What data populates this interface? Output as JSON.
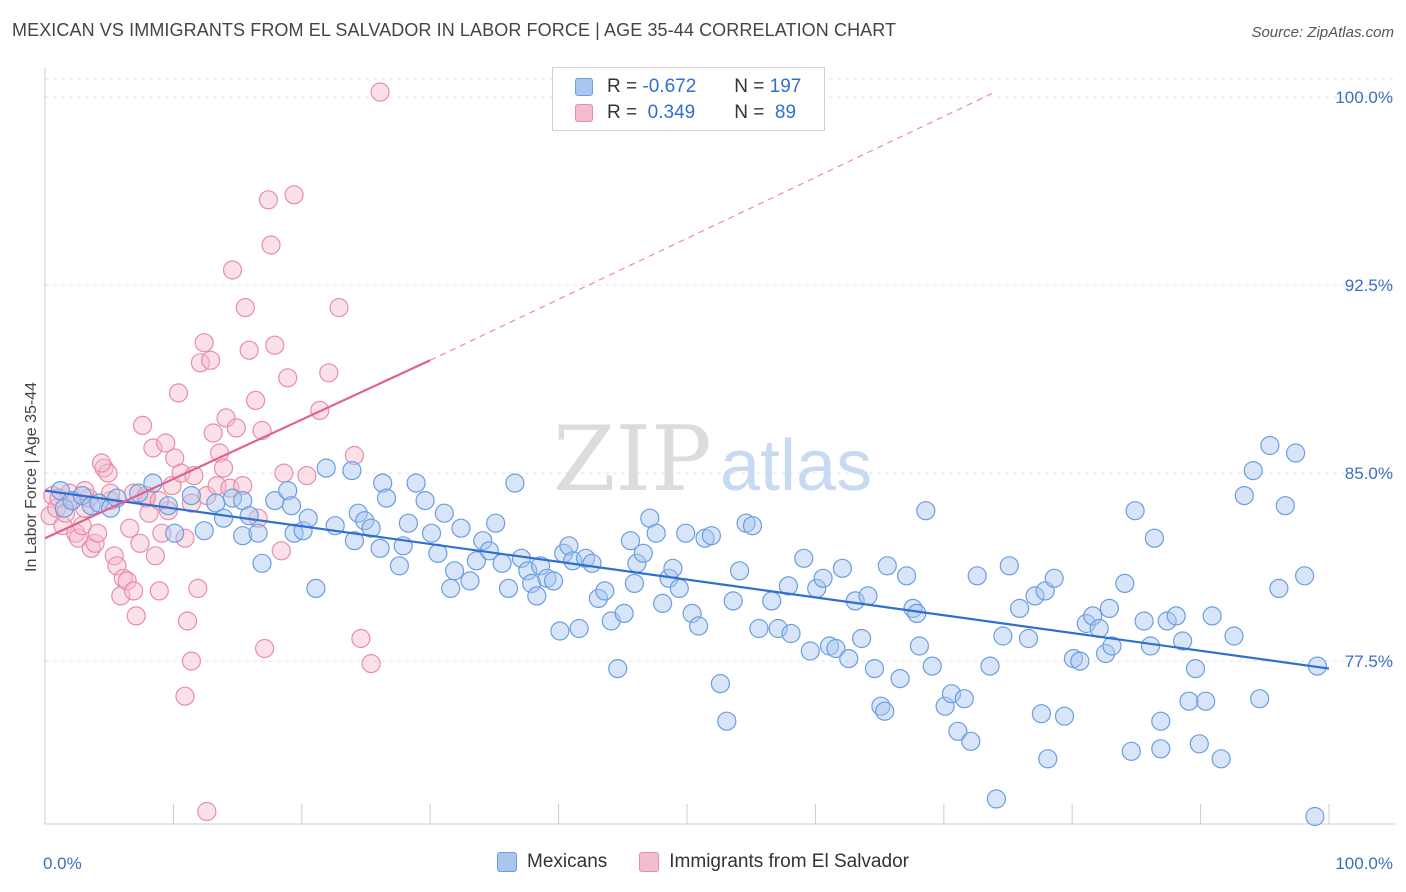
{
  "title": "MEXICAN VS IMMIGRANTS FROM EL SALVADOR IN LABOR FORCE | AGE 35-44 CORRELATION CHART",
  "source": "Source: ZipAtlas.com",
  "watermark": {
    "zip": "ZIP",
    "atlas": "atlas"
  },
  "colors": {
    "blue": "#6a9ee0",
    "blue_fill": "#a9c6ef",
    "blue_line": "#2f6fd0",
    "pink": "#ea8ca9",
    "pink_fill": "#f5bccd",
    "pink_line": "#e0628d",
    "tick_text": "#3a6fc4"
  },
  "legend": {
    "rows": [
      {
        "r_label": "R =",
        "r_value": "-0.672",
        "n_label": "N =",
        "n_value": "197"
      },
      {
        "r_label": "R =",
        "r_value": " 0.349",
        "n_label": "N =",
        "n_value": " 89"
      }
    ]
  },
  "bottom_legend": [
    "Mexicans",
    "Immigrants from El Salvador"
  ],
  "chart_data": {
    "type": "scatter",
    "ylabel": "In Labor Force | Age 35-44",
    "xlim": [
      0,
      100
    ],
    "ylim": [
      71,
      101
    ],
    "x_tick_labels": [
      {
        "value": 0,
        "label": "0.0%"
      },
      {
        "value": 100,
        "label": "100.0%"
      }
    ],
    "y_tick_labels": [
      {
        "value": 100,
        "label": "100.0%"
      },
      {
        "value": 92.5,
        "label": "92.5%"
      },
      {
        "value": 85,
        "label": "85.0%"
      },
      {
        "value": 77.5,
        "label": "77.5%"
      }
    ],
    "grid": "horizontal dashed",
    "series": [
      {
        "name": "Mexicans",
        "trend": {
          "x": [
            0,
            100
          ],
          "y": [
            84.3,
            77.2
          ],
          "dashed": false
        },
        "points": [
          [
            1.2,
            84.3
          ],
          [
            1.5,
            83.6
          ],
          [
            2.1,
            83.9
          ],
          [
            2.9,
            84.1
          ],
          [
            3.6,
            83.7
          ],
          [
            4.2,
            83.8
          ],
          [
            5.1,
            83.6
          ],
          [
            5.6,
            84.0
          ],
          [
            7.3,
            84.2
          ],
          [
            8.4,
            84.6
          ],
          [
            9.6,
            83.7
          ],
          [
            10.1,
            82.6
          ],
          [
            11.4,
            84.1
          ],
          [
            12.4,
            82.7
          ],
          [
            13.3,
            83.8
          ],
          [
            13.9,
            83.2
          ],
          [
            14.6,
            84.0
          ],
          [
            15.4,
            83.9
          ],
          [
            15.9,
            83.3
          ],
          [
            15.4,
            82.5
          ],
          [
            16.6,
            82.6
          ],
          [
            16.9,
            81.4
          ],
          [
            17.9,
            83.9
          ],
          [
            18.9,
            84.3
          ],
          [
            19.2,
            83.7
          ],
          [
            19.4,
            82.6
          ],
          [
            20.1,
            82.7
          ],
          [
            20.5,
            83.2
          ],
          [
            21.1,
            80.4
          ],
          [
            21.9,
            85.2
          ],
          [
            22.6,
            82.9
          ],
          [
            23.9,
            85.1
          ],
          [
            24.4,
            83.4
          ],
          [
            24.9,
            83.1
          ],
          [
            25.4,
            82.8
          ],
          [
            24.1,
            82.3
          ],
          [
            26.1,
            82.0
          ],
          [
            26.3,
            84.6
          ],
          [
            26.6,
            84.0
          ],
          [
            27.6,
            81.3
          ],
          [
            27.9,
            82.1
          ],
          [
            28.3,
            83.0
          ],
          [
            28.9,
            84.6
          ],
          [
            29.6,
            83.9
          ],
          [
            30.1,
            82.6
          ],
          [
            30.6,
            81.8
          ],
          [
            31.1,
            83.4
          ],
          [
            31.6,
            80.4
          ],
          [
            31.9,
            81.1
          ],
          [
            32.4,
            82.8
          ],
          [
            33.1,
            80.7
          ],
          [
            33.6,
            81.5
          ],
          [
            34.1,
            82.3
          ],
          [
            34.6,
            81.9
          ],
          [
            35.1,
            83.0
          ],
          [
            35.6,
            81.4
          ],
          [
            36.1,
            80.4
          ],
          [
            36.6,
            84.6
          ],
          [
            37.1,
            81.6
          ],
          [
            37.6,
            81.1
          ],
          [
            37.9,
            80.6
          ],
          [
            38.3,
            80.1
          ],
          [
            38.6,
            81.3
          ],
          [
            39.1,
            80.8
          ],
          [
            39.6,
            80.7
          ],
          [
            40.1,
            78.7
          ],
          [
            40.4,
            81.8
          ],
          [
            40.8,
            82.1
          ],
          [
            41.1,
            81.5
          ],
          [
            41.6,
            78.8
          ],
          [
            42.1,
            81.6
          ],
          [
            42.6,
            81.4
          ],
          [
            43.1,
            80.0
          ],
          [
            43.6,
            80.3
          ],
          [
            44.1,
            79.1
          ],
          [
            44.6,
            77.2
          ],
          [
            45.1,
            79.4
          ],
          [
            45.6,
            82.3
          ],
          [
            45.9,
            80.6
          ],
          [
            46.1,
            81.4
          ],
          [
            46.6,
            81.8
          ],
          [
            47.1,
            83.2
          ],
          [
            47.6,
            82.6
          ],
          [
            48.1,
            79.8
          ],
          [
            48.6,
            80.8
          ],
          [
            48.9,
            81.2
          ],
          [
            49.4,
            80.4
          ],
          [
            49.9,
            82.6
          ],
          [
            50.4,
            79.4
          ],
          [
            50.9,
            78.9
          ],
          [
            51.4,
            82.4
          ],
          [
            51.9,
            82.5
          ],
          [
            52.6,
            76.6
          ],
          [
            53.1,
            75.1
          ],
          [
            53.6,
            79.9
          ],
          [
            54.1,
            81.1
          ],
          [
            54.6,
            83.0
          ],
          [
            55.1,
            82.9
          ],
          [
            55.6,
            78.8
          ],
          [
            56.6,
            79.9
          ],
          [
            57.1,
            78.8
          ],
          [
            57.9,
            80.5
          ],
          [
            58.1,
            78.6
          ],
          [
            59.1,
            81.6
          ],
          [
            59.6,
            77.9
          ],
          [
            60.1,
            80.4
          ],
          [
            60.6,
            80.8
          ],
          [
            61.1,
            78.1
          ],
          [
            61.6,
            78.0
          ],
          [
            62.1,
            81.2
          ],
          [
            62.6,
            77.6
          ],
          [
            63.1,
            79.9
          ],
          [
            63.6,
            78.4
          ],
          [
            64.1,
            80.1
          ],
          [
            64.6,
            77.2
          ],
          [
            65.1,
            75.7
          ],
          [
            65.4,
            75.5
          ],
          [
            65.6,
            81.3
          ],
          [
            66.6,
            76.8
          ],
          [
            67.1,
            80.9
          ],
          [
            67.6,
            79.6
          ],
          [
            67.9,
            79.4
          ],
          [
            68.1,
            78.1
          ],
          [
            68.6,
            83.5
          ],
          [
            69.1,
            77.3
          ],
          [
            70.1,
            75.7
          ],
          [
            70.6,
            76.2
          ],
          [
            71.1,
            74.7
          ],
          [
            71.6,
            76.0
          ],
          [
            72.1,
            74.3
          ],
          [
            72.6,
            80.9
          ],
          [
            73.6,
            77.3
          ],
          [
            74.1,
            72.0
          ],
          [
            74.6,
            78.5
          ],
          [
            75.1,
            81.3
          ],
          [
            75.9,
            79.6
          ],
          [
            76.6,
            78.4
          ],
          [
            77.1,
            80.1
          ],
          [
            77.6,
            75.4
          ],
          [
            77.9,
            80.3
          ],
          [
            78.1,
            73.6
          ],
          [
            78.6,
            80.8
          ],
          [
            79.4,
            75.3
          ],
          [
            80.1,
            77.6
          ],
          [
            80.6,
            77.5
          ],
          [
            81.1,
            79.0
          ],
          [
            81.6,
            79.3
          ],
          [
            82.1,
            78.8
          ],
          [
            82.6,
            77.8
          ],
          [
            82.9,
            79.6
          ],
          [
            83.1,
            78.1
          ],
          [
            84.1,
            80.6
          ],
          [
            84.6,
            73.9
          ],
          [
            84.9,
            83.5
          ],
          [
            85.6,
            79.1
          ],
          [
            86.1,
            78.1
          ],
          [
            86.9,
            75.1
          ],
          [
            86.9,
            74.0
          ],
          [
            87.4,
            79.1
          ],
          [
            88.1,
            79.3
          ],
          [
            88.6,
            78.3
          ],
          [
            89.1,
            75.9
          ],
          [
            89.6,
            77.2
          ],
          [
            89.9,
            74.2
          ],
          [
            90.4,
            75.9
          ],
          [
            90.9,
            79.3
          ],
          [
            91.6,
            73.6
          ],
          [
            92.6,
            78.5
          ],
          [
            93.4,
            84.1
          ],
          [
            94.1,
            85.1
          ],
          [
            94.6,
            76.0
          ],
          [
            95.4,
            86.1
          ],
          [
            96.1,
            80.4
          ],
          [
            96.6,
            83.7
          ],
          [
            97.4,
            85.8
          ],
          [
            98.1,
            80.9
          ],
          [
            99.1,
            77.3
          ],
          [
            98.9,
            71.3
          ],
          [
            86.4,
            82.4
          ]
        ]
      },
      {
        "name": "Immigrants from El Salvador",
        "trend": {
          "x": [
            0,
            30
          ],
          "y": [
            82.4,
            89.5
          ],
          "dashed_x": [
            30,
            74
          ],
          "dashed_y": [
            89.5,
            100.2
          ]
        },
        "points": [
          [
            0.4,
            83.3
          ],
          [
            0.6,
            84.1
          ],
          [
            0.9,
            83.6
          ],
          [
            1.1,
            84.0
          ],
          [
            1.4,
            82.9
          ],
          [
            1.6,
            83.4
          ],
          [
            1.9,
            84.2
          ],
          [
            2.1,
            83.9
          ],
          [
            2.4,
            82.6
          ],
          [
            2.6,
            82.4
          ],
          [
            2.9,
            82.9
          ],
          [
            3.1,
            83.6
          ],
          [
            3.4,
            84.0
          ],
          [
            3.6,
            82.0
          ],
          [
            3.9,
            82.2
          ],
          [
            4.1,
            82.6
          ],
          [
            4.6,
            85.2
          ],
          [
            4.9,
            85.0
          ],
          [
            5.1,
            83.9
          ],
          [
            5.4,
            81.7
          ],
          [
            5.6,
            81.3
          ],
          [
            5.9,
            80.1
          ],
          [
            6.1,
            80.8
          ],
          [
            6.4,
            80.7
          ],
          [
            6.6,
            82.8
          ],
          [
            6.9,
            80.3
          ],
          [
            7.1,
            79.3
          ],
          [
            7.4,
            82.2
          ],
          [
            7.6,
            86.9
          ],
          [
            7.9,
            84.0
          ],
          [
            8.1,
            83.4
          ],
          [
            8.4,
            86.0
          ],
          [
            8.6,
            81.7
          ],
          [
            8.9,
            80.3
          ],
          [
            9.1,
            82.6
          ],
          [
            9.4,
            86.2
          ],
          [
            9.6,
            83.5
          ],
          [
            9.9,
            84.5
          ],
          [
            10.1,
            85.6
          ],
          [
            10.4,
            88.2
          ],
          [
            10.6,
            85.0
          ],
          [
            10.9,
            82.4
          ],
          [
            11.1,
            79.1
          ],
          [
            11.4,
            77.5
          ],
          [
            11.6,
            84.9
          ],
          [
            11.9,
            80.4
          ],
          [
            12.1,
            89.4
          ],
          [
            12.4,
            90.2
          ],
          [
            12.6,
            84.1
          ],
          [
            12.9,
            89.5
          ],
          [
            13.1,
            86.6
          ],
          [
            13.4,
            84.5
          ],
          [
            13.6,
            85.8
          ],
          [
            13.9,
            85.2
          ],
          [
            14.1,
            87.2
          ],
          [
            14.4,
            84.4
          ],
          [
            14.6,
            93.1
          ],
          [
            14.9,
            86.8
          ],
          [
            15.4,
            84.5
          ],
          [
            15.6,
            91.6
          ],
          [
            15.9,
            89.9
          ],
          [
            16.4,
            87.9
          ],
          [
            16.6,
            83.2
          ],
          [
            16.9,
            86.7
          ],
          [
            17.1,
            78.0
          ],
          [
            17.4,
            95.9
          ],
          [
            17.6,
            94.1
          ],
          [
            17.9,
            90.1
          ],
          [
            18.4,
            81.9
          ],
          [
            18.6,
            85.0
          ],
          [
            18.9,
            88.8
          ],
          [
            19.4,
            96.1
          ],
          [
            20.4,
            84.9
          ],
          [
            21.4,
            87.5
          ],
          [
            22.1,
            89.0
          ],
          [
            22.9,
            91.6
          ],
          [
            24.1,
            85.7
          ],
          [
            24.6,
            78.4
          ],
          [
            26.1,
            100.2
          ],
          [
            25.4,
            77.4
          ],
          [
            12.6,
            71.5
          ],
          [
            10.9,
            76.1
          ],
          [
            4.4,
            85.4
          ],
          [
            3.1,
            84.3
          ],
          [
            5.1,
            84.2
          ],
          [
            6.9,
            84.2
          ],
          [
            7.9,
            84.1
          ],
          [
            8.9,
            83.9
          ],
          [
            11.4,
            83.8
          ]
        ]
      }
    ]
  }
}
